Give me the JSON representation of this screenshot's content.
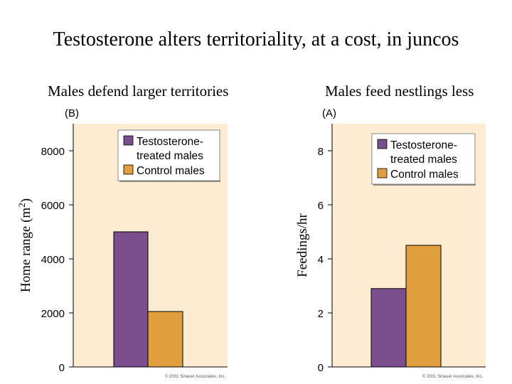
{
  "title": "Testosterone alters territoriality, at a cost, in juncos",
  "colors": {
    "treated": "#7b4f8e",
    "control": "#e19e3d",
    "plot_bg": "#fdecd1"
  },
  "chart_data": [
    {
      "type": "bar",
      "subtitle": "Males defend larger territories",
      "panel_label": "(B)",
      "ylabel": "Home range (m2)",
      "ylabel_main": "Home range (m",
      "ylabel_sup": "2",
      "ylabel_end": ")",
      "ylim": [
        0,
        9000
      ],
      "yticks": [
        0,
        2000,
        4000,
        6000,
        8000
      ],
      "grid": false,
      "legend_position": "top-right",
      "series": [
        {
          "name": "Testosterone-treated males",
          "legend_lines": [
            "Testosterone-",
            "treated males"
          ],
          "values": [
            5000
          ]
        },
        {
          "name": "Control males",
          "legend_lines": [
            "Control males"
          ],
          "values": [
            2050
          ]
        }
      ],
      "copyright": "© 2001 Sinauer Associates, Inc."
    },
    {
      "type": "bar",
      "subtitle": "Males feed nestlings less",
      "panel_label": "(A)",
      "ylabel": "Feedings/hr",
      "ylim": [
        0,
        9
      ],
      "yticks": [
        0,
        2,
        4,
        6,
        8
      ],
      "grid": false,
      "legend_position": "top-right",
      "series": [
        {
          "name": "Testosterone-treated males",
          "legend_lines": [
            "Testosterone-",
            "treated males"
          ],
          "values": [
            2.9
          ]
        },
        {
          "name": "Control males",
          "legend_lines": [
            "Control males"
          ],
          "values": [
            4.5
          ]
        }
      ],
      "copyright": "© 2001 Sinauer Associates, Inc."
    }
  ]
}
